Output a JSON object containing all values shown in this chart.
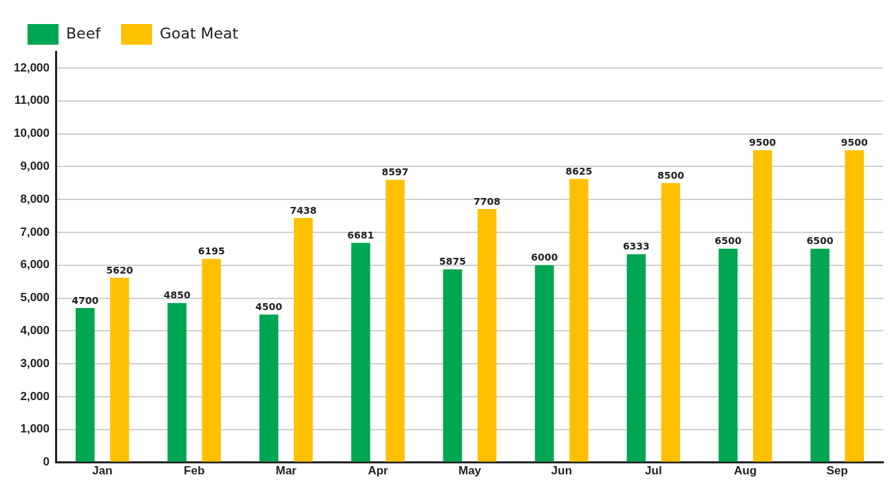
{
  "chart_data": {
    "type": "bar",
    "categories": [
      "Jan",
      "Feb",
      "Mar",
      "Apr",
      "May",
      "Jun",
      "Jul",
      "Aug",
      "Sep"
    ],
    "series": [
      {
        "name": "Beef",
        "color": "#00a651",
        "values": [
          4700,
          4850,
          4500,
          6681,
          5875,
          6000,
          6333,
          6500,
          6500
        ]
      },
      {
        "name": "Goat Meat",
        "color": "#ffc000",
        "values": [
          5620,
          6195,
          7438,
          8597,
          7708,
          8625,
          8500,
          9500,
          9500
        ]
      }
    ],
    "ylim": [
      0,
      12500
    ],
    "yticks": [
      {
        "value": 0,
        "label": "0"
      },
      {
        "value": 1000,
        "label": "1,000"
      },
      {
        "value": 2000,
        "label": "2,000"
      },
      {
        "value": 3000,
        "label": "3,000"
      },
      {
        "value": 4000,
        "label": "4,000"
      },
      {
        "value": 5000,
        "label": "5,000"
      },
      {
        "value": 6000,
        "label": "6,000"
      },
      {
        "value": 7000,
        "label": "7,000"
      },
      {
        "value": 8000,
        "label": "8,000"
      },
      {
        "value": 9000,
        "label": "9,000"
      },
      {
        "value": 10000,
        "label": "10,000"
      },
      {
        "value": 11000,
        "label": "11,000"
      },
      {
        "value": 12000,
        "label": "12,000"
      }
    ],
    "grid": "y",
    "legend": "top left",
    "data_labels": true
  }
}
